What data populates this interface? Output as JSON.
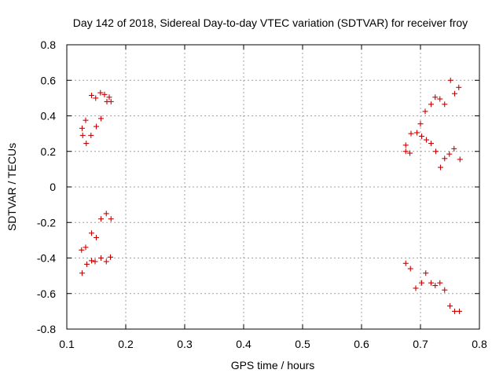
{
  "chart_data": {
    "type": "scatter",
    "title": "Day 142 of 2018, Sidereal Day-to-day VTEC variation (SDTVAR) for receiver froy",
    "xlabel": "GPS time / hours",
    "ylabel": "SDTVAR / TECUs",
    "xlim": [
      0.1,
      0.8
    ],
    "ylim": [
      -0.8,
      0.8
    ],
    "xticks": [
      0.1,
      0.2,
      0.3,
      0.4,
      0.5,
      0.6,
      0.7,
      0.8
    ],
    "yticks": [
      -0.8,
      -0.6,
      -0.4,
      -0.2,
      0,
      0.2,
      0.4,
      0.6,
      0.8
    ],
    "xtick_labels": [
      "0.1",
      "0.2",
      "0.3",
      "0.4",
      "0.5",
      "0.6",
      "0.7",
      "0.8"
    ],
    "ytick_labels": [
      "-0.8",
      "-0.6",
      "-0.4",
      "-0.2",
      "0",
      "0.2",
      "0.4",
      "0.6",
      "0.8"
    ],
    "grid": true,
    "marker": "+",
    "color": "#cc0000",
    "series": [
      {
        "name": "SDTVAR",
        "points": [
          [
            0.142,
            0.515
          ],
          [
            0.149,
            0.5
          ],
          [
            0.157,
            0.53
          ],
          [
            0.164,
            0.52
          ],
          [
            0.168,
            0.48
          ],
          [
            0.172,
            0.505
          ],
          [
            0.175,
            0.48
          ],
          [
            0.158,
            0.385
          ],
          [
            0.132,
            0.375
          ],
          [
            0.15,
            0.34
          ],
          [
            0.126,
            0.33
          ],
          [
            0.127,
            0.29
          ],
          [
            0.141,
            0.29
          ],
          [
            0.133,
            0.245
          ],
          [
            0.167,
            -0.15
          ],
          [
            0.158,
            -0.18
          ],
          [
            0.175,
            -0.18
          ],
          [
            0.142,
            -0.26
          ],
          [
            0.15,
            -0.285
          ],
          [
            0.132,
            -0.34
          ],
          [
            0.125,
            -0.355
          ],
          [
            0.174,
            -0.395
          ],
          [
            0.158,
            -0.4
          ],
          [
            0.142,
            -0.415
          ],
          [
            0.148,
            -0.42
          ],
          [
            0.167,
            -0.42
          ],
          [
            0.134,
            -0.435
          ],
          [
            0.126,
            -0.485
          ],
          [
            0.751,
            0.6
          ],
          [
            0.765,
            0.56
          ],
          [
            0.758,
            0.525
          ],
          [
            0.725,
            0.505
          ],
          [
            0.733,
            0.495
          ],
          [
            0.718,
            0.465
          ],
          [
            0.741,
            0.465
          ],
          [
            0.708,
            0.425
          ],
          [
            0.7,
            0.355
          ],
          [
            0.694,
            0.305
          ],
          [
            0.684,
            0.3
          ],
          [
            0.702,
            0.285
          ],
          [
            0.71,
            0.265
          ],
          [
            0.718,
            0.245
          ],
          [
            0.675,
            0.235
          ],
          [
            0.757,
            0.215
          ],
          [
            0.675,
            0.2
          ],
          [
            0.726,
            0.2
          ],
          [
            0.682,
            0.19
          ],
          [
            0.749,
            0.185
          ],
          [
            0.741,
            0.16
          ],
          [
            0.767,
            0.155
          ],
          [
            0.734,
            0.11
          ],
          [
            0.675,
            -0.43
          ],
          [
            0.683,
            -0.46
          ],
          [
            0.709,
            -0.485
          ],
          [
            0.702,
            -0.54
          ],
          [
            0.718,
            -0.54
          ],
          [
            0.733,
            -0.54
          ],
          [
            0.725,
            -0.555
          ],
          [
            0.692,
            -0.57
          ],
          [
            0.741,
            -0.58
          ],
          [
            0.75,
            -0.67
          ],
          [
            0.758,
            -0.7
          ],
          [
            0.766,
            -0.7
          ]
        ]
      }
    ]
  }
}
